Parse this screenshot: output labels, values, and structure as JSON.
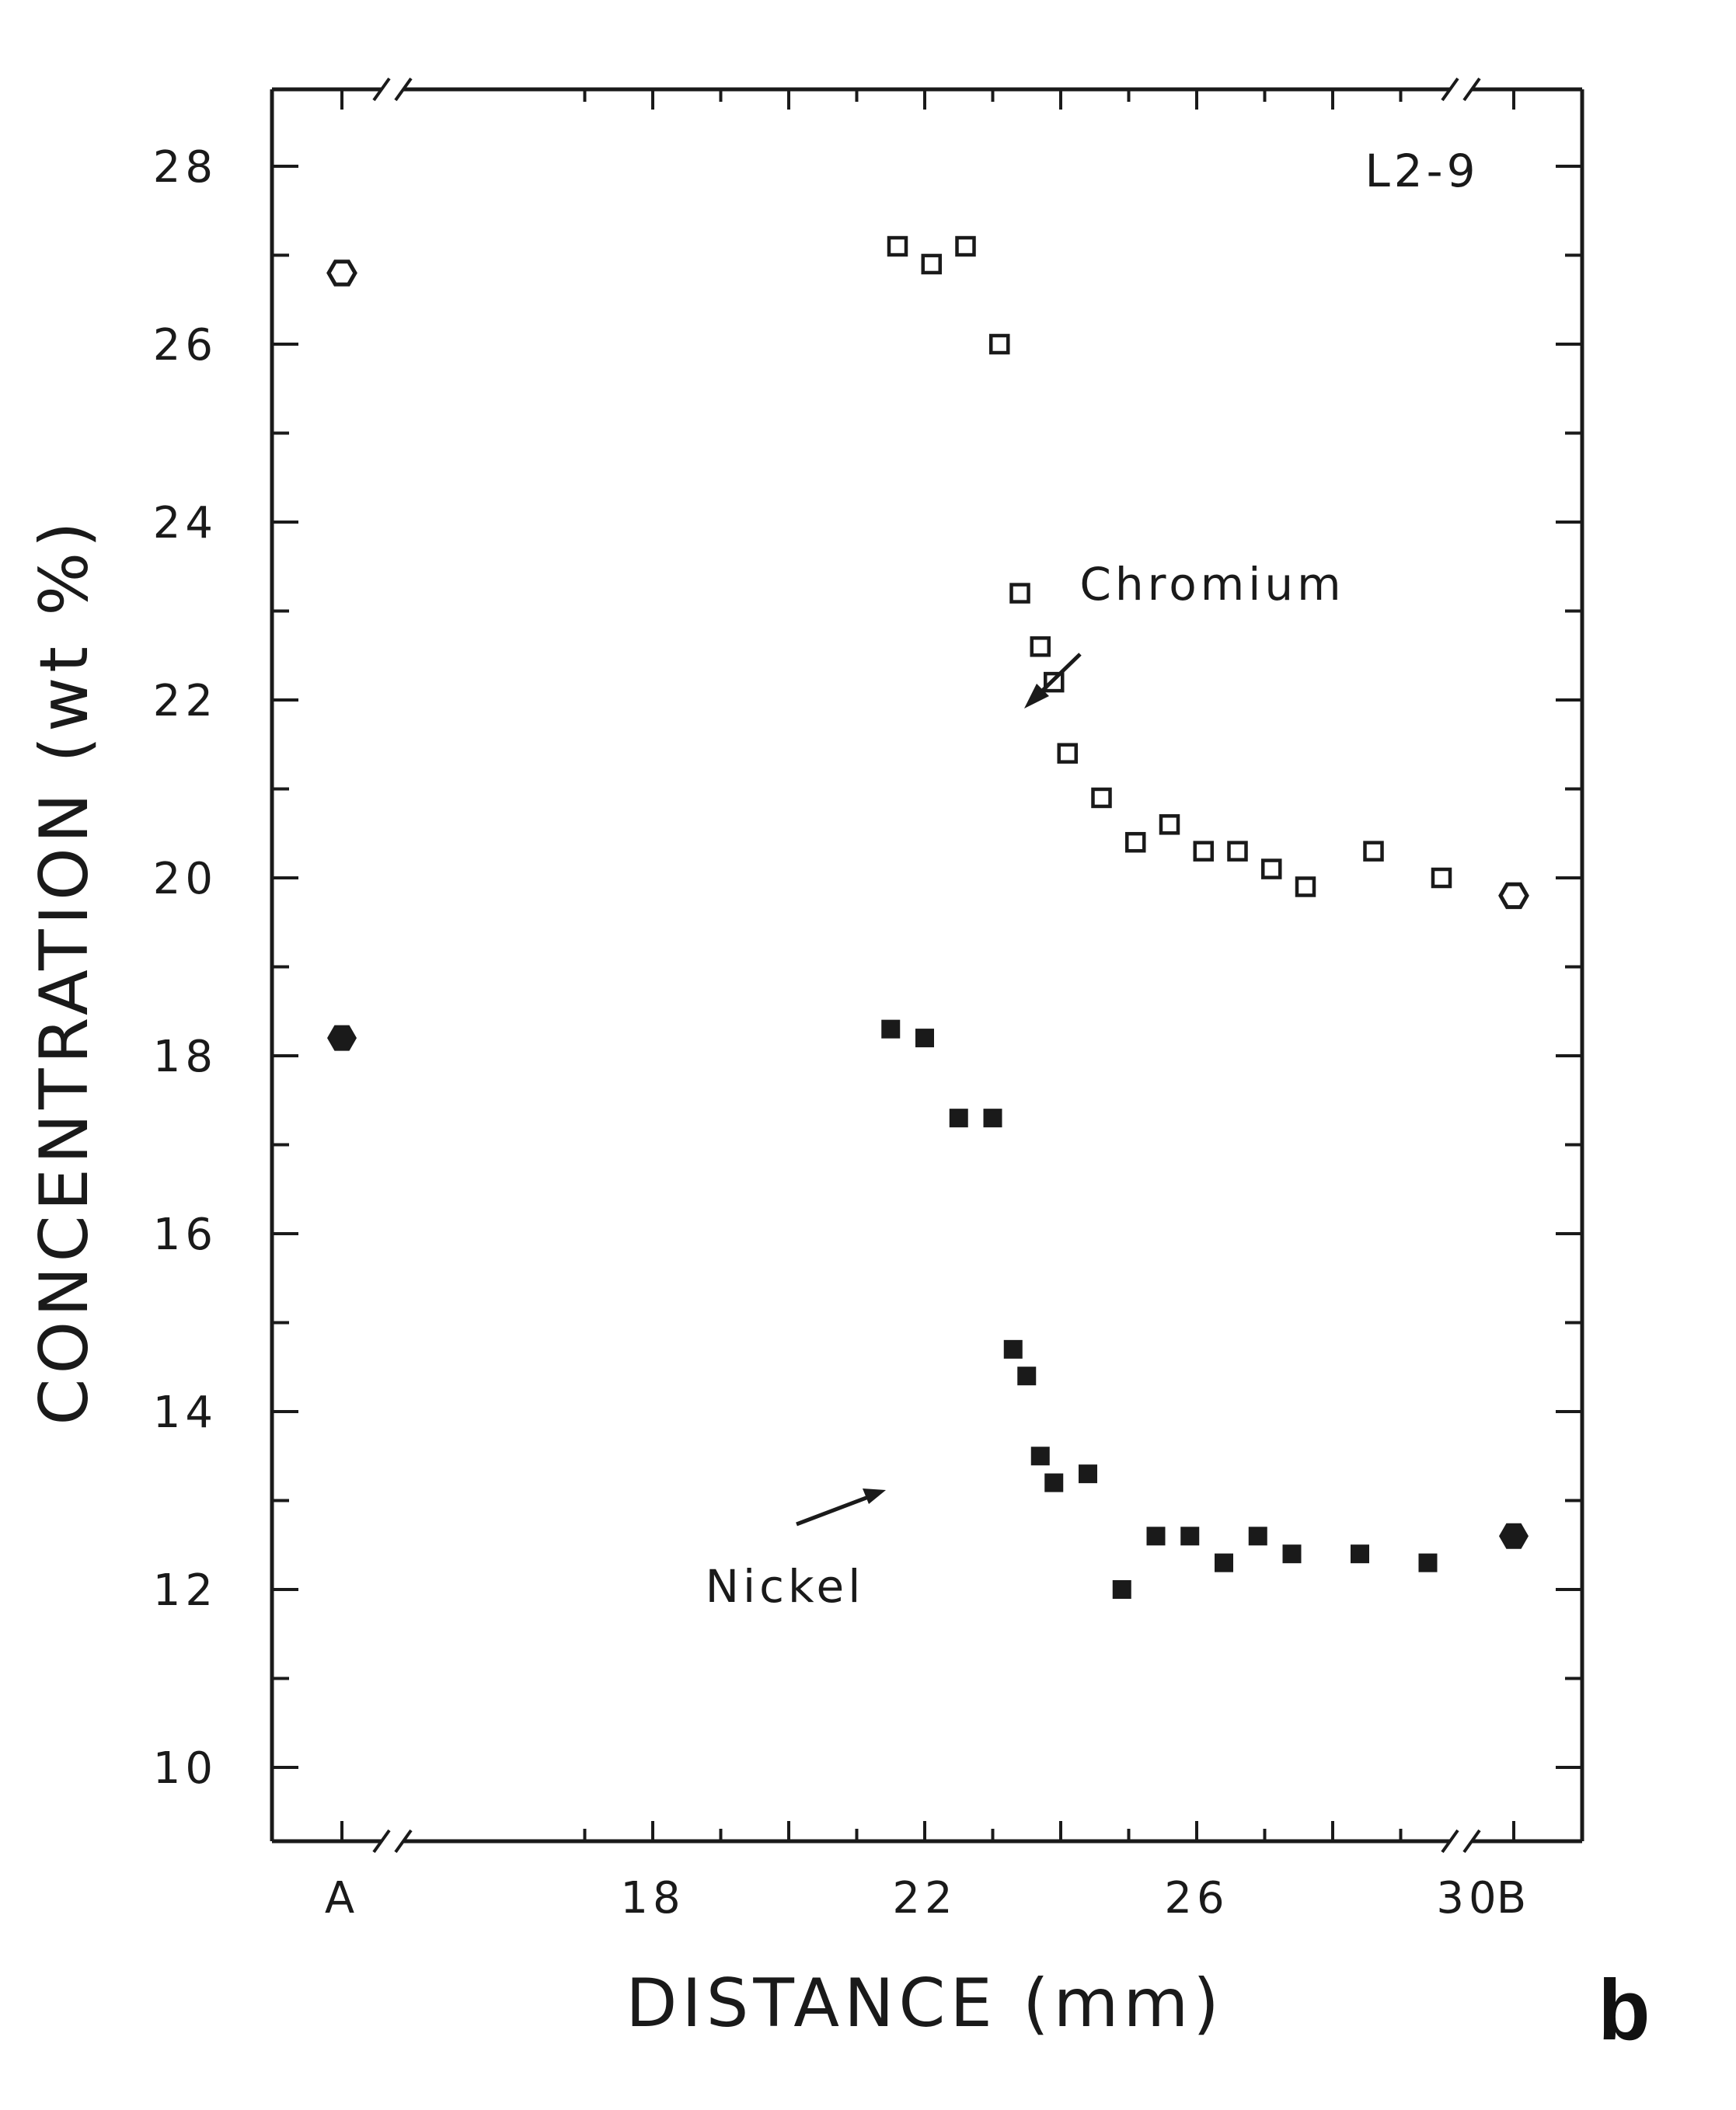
{
  "chart_data": {
    "type": "scatter",
    "title": "",
    "sample_label": "L2-9",
    "panel_label": "b",
    "xlabel": "DISTANCE (mm)",
    "ylabel": "CONCENTRATION (wt %)",
    "xlim": [
      16,
      32
    ],
    "ylim": [
      9,
      29
    ],
    "x_ticks": [
      "A",
      "18",
      "22",
      "26",
      "30",
      "B"
    ],
    "y_ticks": [
      "10",
      "12",
      "14",
      "16",
      "18",
      "20",
      "22",
      "24",
      "26",
      "28"
    ],
    "x_axis_breaks": "between A and 18, and between 30 and B",
    "annotations": [
      "Chromium",
      "Nickel"
    ],
    "series": [
      {
        "name": "Chromium",
        "marker": "open square",
        "x": [
          21.6,
          22.1,
          22.6,
          23.1,
          23.4,
          23.7,
          23.9,
          24.1,
          24.6,
          25.1,
          25.6,
          26.1,
          26.6,
          27.1,
          27.6,
          28.6,
          29.6
        ],
        "y": [
          27.1,
          26.9,
          27.1,
          26.0,
          23.2,
          22.6,
          22.2,
          21.4,
          20.9,
          20.4,
          20.6,
          20.3,
          20.3,
          20.1,
          19.9,
          20.3,
          20.0
        ]
      },
      {
        "name": "Nickel",
        "marker": "filled square",
        "x": [
          21.5,
          22.0,
          22.5,
          23.0,
          23.3,
          23.5,
          23.7,
          23.9,
          24.4,
          24.9,
          25.4,
          25.9,
          26.4,
          26.9,
          27.4,
          28.4,
          29.4
        ],
        "y": [
          18.3,
          18.2,
          17.3,
          17.3,
          14.7,
          14.4,
          13.5,
          13.2,
          13.3,
          12.0,
          12.6,
          12.6,
          12.3,
          12.6,
          12.4,
          12.4,
          12.3
        ]
      },
      {
        "marker": "open circle",
        "x": [
          "A",
          "B"
        ],
        "y": [
          26.8,
          19.8
        ]
      },
      {
        "marker": "filled circle",
        "x": [
          "A",
          "B"
        ],
        "y": [
          18.2,
          12.6
        ]
      }
    ]
  }
}
